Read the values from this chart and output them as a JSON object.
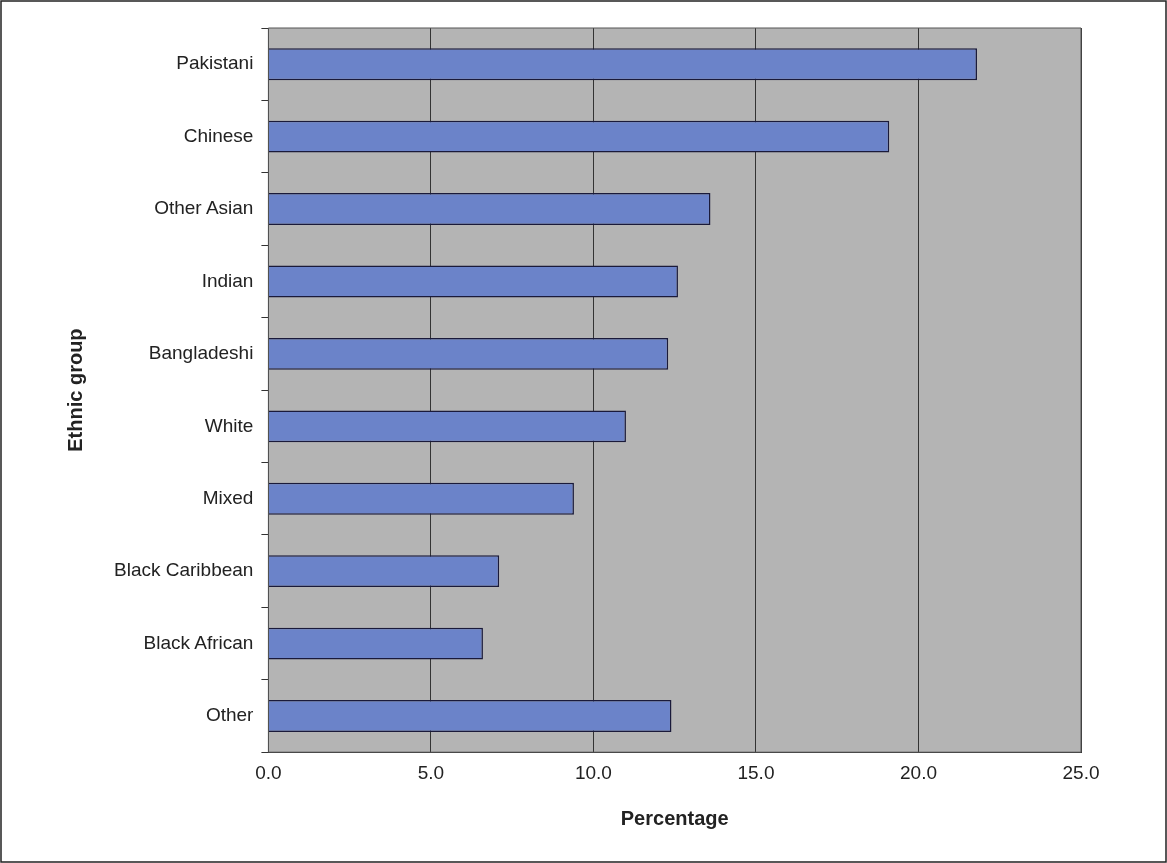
{
  "chart_data": {
    "type": "bar",
    "orientation": "horizontal",
    "xlabel": "Percentage",
    "ylabel": "Ethnic group",
    "categories": [
      "Pakistani",
      "Chinese",
      "Other Asian",
      "Indian",
      "Bangladeshi",
      "White",
      "Mixed",
      "Black Caribbean",
      "Black African",
      "Other"
    ],
    "values": [
      21.8,
      19.1,
      13.6,
      12.6,
      12.3,
      11.0,
      9.4,
      7.1,
      6.6,
      12.4
    ],
    "color": "#6b83c9",
    "xlim": [
      0,
      25
    ],
    "xticks": [
      {
        "value": 0,
        "label": "0.0"
      },
      {
        "value": 5,
        "label": "5.0"
      },
      {
        "value": 10,
        "label": "10.0"
      },
      {
        "value": 15,
        "label": "15.0"
      },
      {
        "value": 20,
        "label": "20.0"
      },
      {
        "value": 25,
        "label": "25.0"
      }
    ],
    "grid": "x",
    "legend": false
  }
}
